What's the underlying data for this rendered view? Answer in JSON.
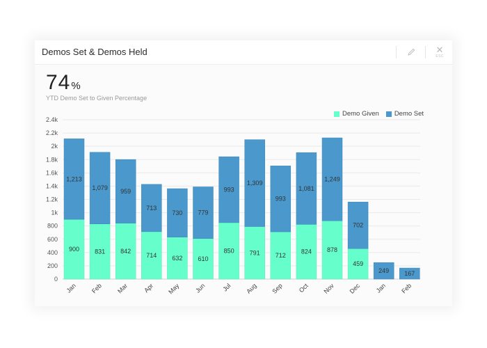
{
  "window": {
    "title": "Demos Set & Demos Held",
    "edit_icon": "pencil-icon",
    "close_icon": "close-icon",
    "close_hint": "ESC"
  },
  "kpi": {
    "value": "74",
    "unit": "%",
    "label": "YTD Demo Set to Given Percentage"
  },
  "legend": [
    {
      "name": "Demo Given",
      "color": "#66ffcc"
    },
    {
      "name": "Demo Set",
      "color": "#4a98cc"
    }
  ],
  "chart_data": {
    "type": "bar",
    "stacked": true,
    "title": "Demos Set & Demos Held",
    "xlabel": "",
    "ylabel": "",
    "ylim": [
      0,
      2400
    ],
    "yticks": [
      "0",
      "200",
      "400",
      "600",
      "800",
      "1k",
      "1.2k",
      "1.4k",
      "1.6k",
      "1.8k",
      "2k",
      "2.2k",
      "2.4k"
    ],
    "grid": true,
    "legend_position": "top-right",
    "categories": [
      "Jan",
      "Feb",
      "Mar",
      "Apr",
      "May",
      "Jun",
      "Jul",
      "Aug",
      "Sep",
      "Oct",
      "Nov",
      "Dec",
      "Jan",
      "Feb"
    ],
    "series": [
      {
        "name": "Demo Given",
        "color": "#66ffcc",
        "values": [
          900,
          831,
          842,
          714,
          632,
          610,
          850,
          791,
          712,
          824,
          878,
          459,
          0,
          0
        ]
      },
      {
        "name": "Demo Set",
        "color": "#4a98cc",
        "values": [
          1213,
          1079,
          959,
          713,
          730,
          779,
          993,
          1309,
          993,
          1081,
          1249,
          702,
          249,
          167
        ]
      }
    ]
  }
}
